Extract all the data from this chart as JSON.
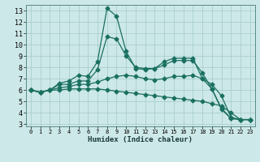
{
  "title": "",
  "xlabel": "Humidex (Indice chaleur)",
  "ylabel": "",
  "bg_color": "#cde8e8",
  "grid_color": "#aacece",
  "line_color": "#1a7060",
  "xlim": [
    -0.5,
    23.5
  ],
  "ylim": [
    2.8,
    13.5
  ],
  "xticks": [
    0,
    1,
    2,
    3,
    4,
    5,
    6,
    7,
    8,
    9,
    10,
    11,
    12,
    13,
    14,
    15,
    16,
    17,
    18,
    19,
    20,
    21,
    22,
    23
  ],
  "yticks": [
    3,
    4,
    5,
    6,
    7,
    8,
    9,
    10,
    11,
    12,
    13
  ],
  "series": [
    [
      6.0,
      5.8,
      6.0,
      6.6,
      6.8,
      7.3,
      7.2,
      8.5,
      13.2,
      12.5,
      9.4,
      7.9,
      7.8,
      7.9,
      8.5,
      8.8,
      8.8,
      8.8,
      7.0,
      6.1,
      4.3,
      3.5,
      3.4,
      3.4
    ],
    [
      6.0,
      5.8,
      6.0,
      6.5,
      6.5,
      6.8,
      6.8,
      7.8,
      10.7,
      10.5,
      9.0,
      8.0,
      7.9,
      7.9,
      8.2,
      8.6,
      8.6,
      8.6,
      7.5,
      6.1,
      4.4,
      3.5,
      3.4,
      3.4
    ],
    [
      6.0,
      5.8,
      6.0,
      6.2,
      6.3,
      6.5,
      6.5,
      6.7,
      7.0,
      7.2,
      7.3,
      7.2,
      7.0,
      6.9,
      7.0,
      7.2,
      7.2,
      7.3,
      7.0,
      6.5,
      5.5,
      3.6,
      3.4,
      3.4
    ],
    [
      6.0,
      5.8,
      6.0,
      6.0,
      6.1,
      6.1,
      6.1,
      6.1,
      6.0,
      5.9,
      5.8,
      5.7,
      5.6,
      5.5,
      5.4,
      5.3,
      5.2,
      5.1,
      5.0,
      4.8,
      4.6,
      4.0,
      3.4,
      3.4
    ]
  ],
  "marker": "D",
  "markersize": 2.5,
  "linewidth": 0.9,
  "xlabel_fontsize": 6.5,
  "tick_fontsize_x": 5.0,
  "tick_fontsize_y": 6.0
}
